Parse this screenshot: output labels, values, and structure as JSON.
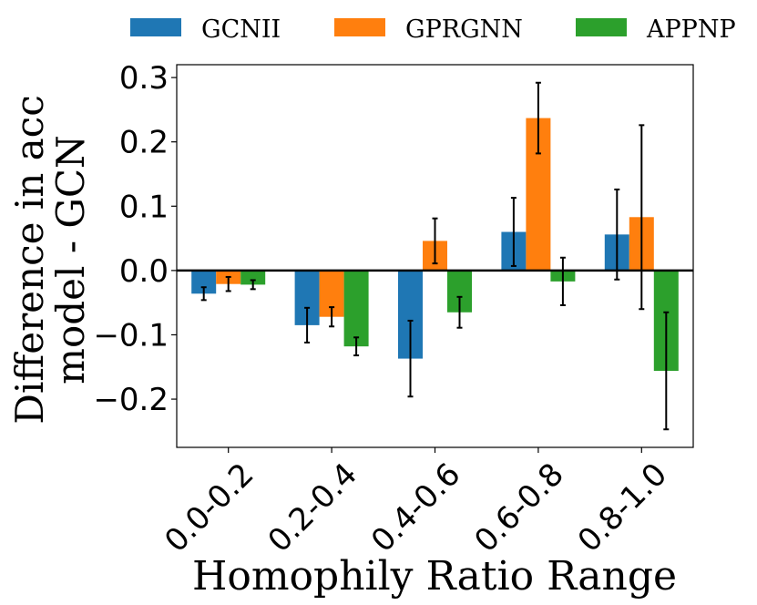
{
  "chart_data": {
    "type": "bar",
    "title": "",
    "xlabel": "Homophily Ratio Range",
    "ylabel_line1": "Difference in acc",
    "ylabel_line2": "model - GCN",
    "ylim": [
      -0.275,
      0.32
    ],
    "yticks": [
      0.3,
      0.2,
      0.1,
      0.0,
      -0.1,
      -0.2
    ],
    "ytick_labels": [
      "0.3",
      "0.2",
      "0.1",
      "0.0",
      "−0.1",
      "−0.2"
    ],
    "categories": [
      "0.0-0.2",
      "0.2-0.4",
      "0.4-0.6",
      "0.6-0.8",
      "0.8-1.0"
    ],
    "legend_position": "top",
    "grid": false,
    "series": [
      {
        "name": "GCNII",
        "color": "#1f77b4",
        "values": [
          -0.036,
          -0.085,
          -0.137,
          0.06,
          0.056
        ],
        "errors": [
          0.01,
          0.027,
          0.059,
          0.053,
          0.07
        ]
      },
      {
        "name": "GPRGNN",
        "color": "#ff7f0e",
        "values": [
          -0.021,
          -0.072,
          0.046,
          0.237,
          0.083
        ],
        "errors": [
          0.011,
          0.015,
          0.035,
          0.055,
          0.143
        ]
      },
      {
        "name": "APPNP",
        "color": "#2ca02c",
        "values": [
          -0.022,
          -0.118,
          -0.065,
          -0.017,
          -0.156
        ],
        "errors": [
          0.007,
          0.014,
          0.024,
          0.037,
          0.091
        ]
      }
    ]
  }
}
